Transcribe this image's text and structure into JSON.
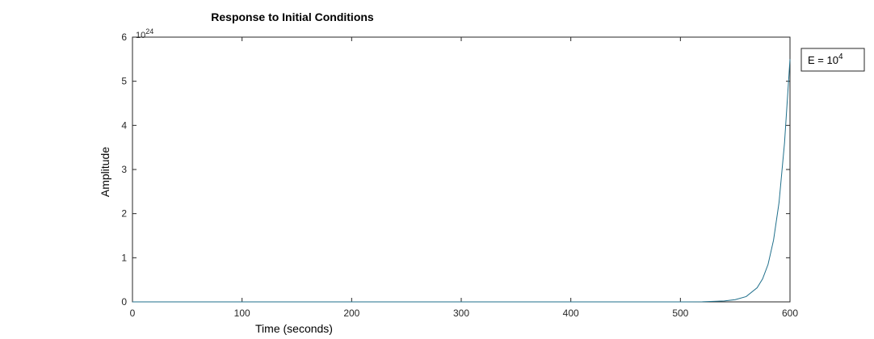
{
  "chart_data": {
    "type": "line",
    "title": "Response to Initial Conditions",
    "xlabel": "Time (seconds)",
    "ylabel": "Amplitude",
    "xlim": [
      0,
      600
    ],
    "ylim": [
      0,
      6
    ],
    "y_multiplier": {
      "base": "10",
      "exponent": "24"
    },
    "grid": false,
    "legend_position": "outside-top-right",
    "xticks": [
      0,
      100,
      200,
      300,
      400,
      500,
      600
    ],
    "yticks": [
      0,
      1,
      2,
      3,
      4,
      5,
      6
    ],
    "series": [
      {
        "name": "E = 10^4",
        "legend": {
          "prefix": "E = 10",
          "superscript": "4"
        },
        "color": "#1f6f8b",
        "x": [
          0,
          100,
          200,
          300,
          400,
          500,
          520,
          540,
          550,
          560,
          570,
          575,
          580,
          585,
          590,
          595,
          600
        ],
        "y": [
          0,
          0,
          0,
          0,
          0,
          0.0005,
          0.003,
          0.02,
          0.05,
          0.12,
          0.32,
          0.52,
          0.85,
          1.4,
          2.25,
          3.6,
          5.5
        ]
      }
    ]
  }
}
